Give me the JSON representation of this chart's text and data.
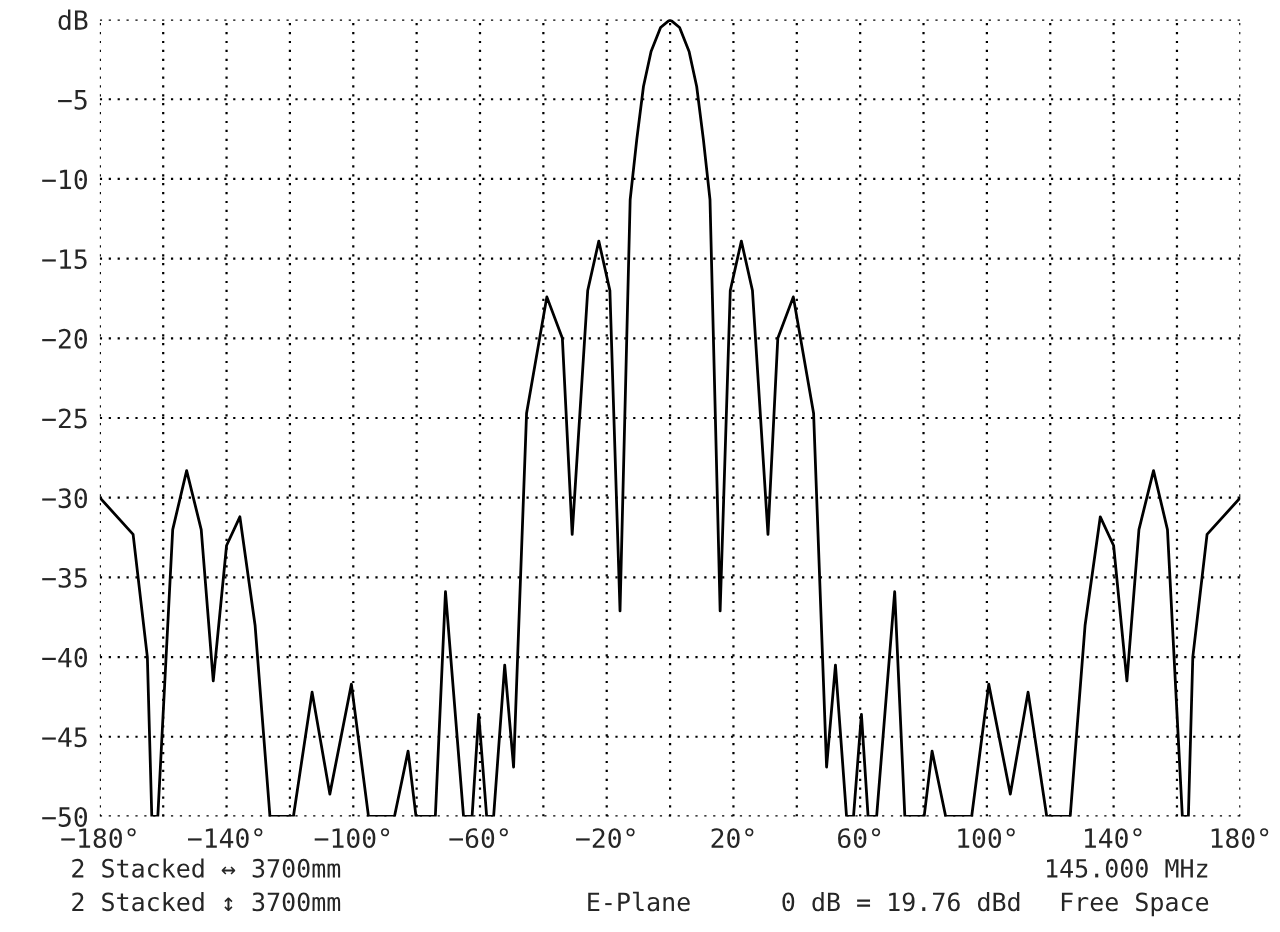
{
  "chart_data": {
    "type": "line",
    "x": [
      -180,
      -169.5,
      -165,
      -163.6,
      -161.7,
      -157,
      -152.6,
      -148,
      -144.2,
      -140,
      -135.8,
      -131,
      -126.3,
      -118.9,
      -113,
      -107.4,
      -100.6,
      -95.2,
      -87,
      -82.7,
      -80.2,
      -74.1,
      -70.9,
      -65.2,
      -62.5,
      -60.4,
      -57.9,
      -55.7,
      -52.2,
      -49.4,
      -45.3,
      -38.9,
      -34,
      -30.9,
      -26,
      -22.5,
      -19,
      -15.8,
      -12.6,
      -10.5,
      -8.4,
      -6,
      -3,
      0,
      3,
      6,
      8.4,
      10.5,
      12.6,
      15.8,
      19,
      22.5,
      26,
      30.9,
      34,
      38.9,
      45.3,
      49.4,
      52.2,
      55.7,
      57.9,
      60.4,
      62.5,
      65.2,
      70.9,
      74.1,
      80.2,
      82.7,
      87,
      95.2,
      100.6,
      107.4,
      113,
      118.9,
      126.3,
      131,
      135.8,
      140,
      144.2,
      148,
      152.6,
      157,
      161.7,
      163.6,
      165,
      169.5,
      180
    ],
    "series": [
      {
        "color": "#000000",
        "values": [
          -30,
          -32.3,
          -40,
          -50,
          -50,
          -32,
          -28.3,
          -32,
          -41.5,
          -33,
          -31.2,
          -38,
          -50,
          -50,
          -42.2,
          -48.6,
          -41.7,
          -50,
          -50,
          -45.9,
          -50,
          -50,
          -35.9,
          -50,
          -50,
          -43.6,
          -50,
          -50,
          -40.5,
          -46.9,
          -24.7,
          -17.4,
          -20,
          -32.3,
          -17,
          -13.9,
          -17,
          -37.1,
          -11.3,
          -7.5,
          -4.2,
          -2,
          -0.5,
          0,
          -0.5,
          -2,
          -4.2,
          -7.5,
          -11.3,
          -37.1,
          -17,
          -13.9,
          -17,
          -32.3,
          -20,
          -17.4,
          -24.7,
          -46.9,
          -40.5,
          -50,
          -50,
          -43.6,
          -50,
          -50,
          -35.9,
          -50,
          -50,
          -45.9,
          -50,
          -50,
          -41.7,
          -48.6,
          -42.2,
          -50,
          -50,
          -38,
          -31.2,
          -33,
          -41.5,
          -32,
          -28.3,
          -32,
          -50,
          -50,
          -40,
          -32.3,
          -30
        ]
      }
    ],
    "xlim": [
      -180,
      180
    ],
    "ylim": [
      -50,
      0
    ],
    "xticks": [
      {
        "value": -180,
        "label": "−180°"
      },
      {
        "value": -160,
        "label": null
      },
      {
        "value": -140,
        "label": "−140°"
      },
      {
        "value": -120,
        "label": null
      },
      {
        "value": -100,
        "label": "−100°"
      },
      {
        "value": -80,
        "label": null
      },
      {
        "value": -60,
        "label": "−60°"
      },
      {
        "value": -40,
        "label": null
      },
      {
        "value": -20,
        "label": "−20°"
      },
      {
        "value": 0,
        "label": null
      },
      {
        "value": 20,
        "label": "20°"
      },
      {
        "value": 40,
        "label": null
      },
      {
        "value": 60,
        "label": "60°"
      },
      {
        "value": 80,
        "label": null
      },
      {
        "value": 100,
        "label": "100°"
      },
      {
        "value": 120,
        "label": null
      },
      {
        "value": 140,
        "label": "140°"
      },
      {
        "value": 160,
        "label": null
      },
      {
        "value": 180,
        "label": "180°"
      }
    ],
    "yticks": [
      {
        "value": 0,
        "label": "dB"
      },
      {
        "value": -5,
        "label": "−5"
      },
      {
        "value": -10,
        "label": "−10"
      },
      {
        "value": -15,
        "label": "−15"
      },
      {
        "value": -20,
        "label": "−20"
      },
      {
        "value": -25,
        "label": "−25"
      },
      {
        "value": -30,
        "label": "−30"
      },
      {
        "value": -35,
        "label": "−35"
      },
      {
        "value": -40,
        "label": "−40"
      },
      {
        "value": -45,
        "label": "−45"
      },
      {
        "value": -50,
        "label": "−50"
      }
    ],
    "grid": true,
    "line_style": "solid",
    "marker": "none",
    "annotations": [
      "2 Stacked ↔ 3700mm",
      "2 Stacked ↕ 3700mm",
      "145.000 MHz",
      "E-Plane",
      "0 dB = 19.76 dBd",
      "Free Space"
    ]
  }
}
